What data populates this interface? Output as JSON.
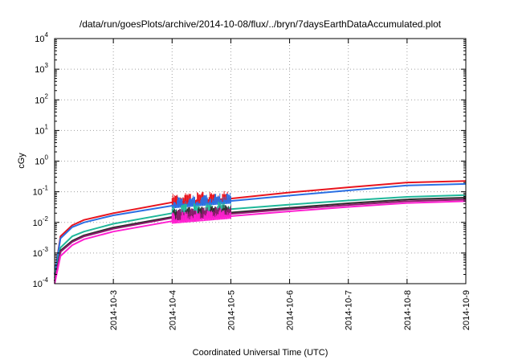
{
  "chart_data": {
    "type": "line",
    "title": "/data/run/goesPlots/archive/2014-10-08/flux/../bryn/7daysEarthDataAccumulated.plot",
    "xlabel": "Coordinated Universal Time (UTC)",
    "ylabel": "cGy",
    "y_scale": "log",
    "ylim": [
      0.0001,
      10000
    ],
    "xlim": [
      "2014-10-02",
      "2014-10-09"
    ],
    "grid": true,
    "legend": "none",
    "x_ticks": [
      "2014-10-3",
      "2014-10-4",
      "2014-10-5",
      "2014-10-6",
      "2014-10-7",
      "2014-10-8",
      "2014-10-9"
    ],
    "y_ticks": [
      {
        "value": 0.0001,
        "base": "10",
        "exp": "-4"
      },
      {
        "value": 0.001,
        "base": "10",
        "exp": "-3"
      },
      {
        "value": 0.01,
        "base": "10",
        "exp": "-2"
      },
      {
        "value": 0.1,
        "base": "10",
        "exp": "-1"
      },
      {
        "value": 1,
        "base": "10",
        "exp": "0"
      },
      {
        "value": 10,
        "base": "10",
        "exp": "1"
      },
      {
        "value": 100,
        "base": "10",
        "exp": "2"
      },
      {
        "value": 1000,
        "base": "10",
        "exp": "3"
      },
      {
        "value": 10000,
        "base": "10",
        "exp": "4"
      }
    ],
    "x": [
      "2014-10-02",
      "2014-10-02.1",
      "2014-10-02.3",
      "2014-10-02.5",
      "2014-10-03",
      "2014-10-04",
      "2014-10-05",
      "2014-10-06",
      "2014-10-07",
      "2014-10-08",
      "2014-10-09"
    ],
    "series": [
      {
        "color": "#e8141e",
        "values": [
          0.0002,
          0.0035,
          0.008,
          0.012,
          0.02,
          0.045,
          0.06,
          0.095,
          0.14,
          0.2,
          0.225
        ]
      },
      {
        "color": "#2b6fe3",
        "values": [
          0.0002,
          0.003,
          0.007,
          0.01,
          0.017,
          0.035,
          0.05,
          0.075,
          0.11,
          0.16,
          0.18
        ]
      },
      {
        "color": "#1fb89a",
        "values": [
          0.00015,
          0.0015,
          0.0035,
          0.005,
          0.009,
          0.02,
          0.027,
          0.038,
          0.052,
          0.068,
          0.078
        ]
      },
      {
        "color": "#2e2e2e",
        "values": [
          0.00012,
          0.0012,
          0.0025,
          0.0038,
          0.0068,
          0.015,
          0.021,
          0.03,
          0.042,
          0.056,
          0.064
        ]
      },
      {
        "color": "#8b1a6b",
        "values": [
          0.00012,
          0.0011,
          0.0023,
          0.0035,
          0.0062,
          0.014,
          0.019,
          0.027,
          0.037,
          0.049,
          0.056
        ]
      },
      {
        "color": "#ff1fd0",
        "values": [
          0.0001,
          0.0008,
          0.0018,
          0.0028,
          0.005,
          0.011,
          0.016,
          0.023,
          0.032,
          0.043,
          0.049
        ]
      }
    ]
  }
}
